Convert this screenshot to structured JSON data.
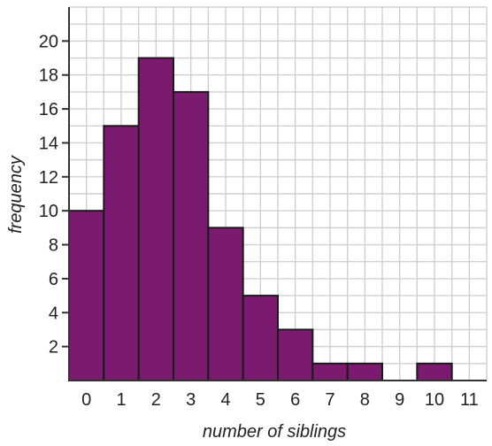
{
  "chart_data": {
    "type": "bar",
    "title": "",
    "xlabel": "number of siblings",
    "ylabel": "frequency",
    "categories": [
      "0",
      "1",
      "2",
      "3",
      "4",
      "5",
      "6",
      "7",
      "8",
      "9",
      "10"
    ],
    "values": [
      10,
      15,
      19,
      17,
      9,
      5,
      3,
      1,
      1,
      0,
      1
    ],
    "x_tick_labels": [
      "0",
      "1",
      "2",
      "3",
      "4",
      "5",
      "6",
      "7",
      "8",
      "9",
      "10",
      "11"
    ],
    "y_tick_labels": [
      "2",
      "4",
      "6",
      "8",
      "10",
      "12",
      "14",
      "16",
      "18",
      "20"
    ],
    "ylim": [
      0,
      22
    ],
    "xlim": [
      -0.5,
      11.5
    ],
    "grid": true,
    "legend": "none",
    "bar_color": "#7b1a6e",
    "bar_edge_color": "#1a1a1a"
  }
}
